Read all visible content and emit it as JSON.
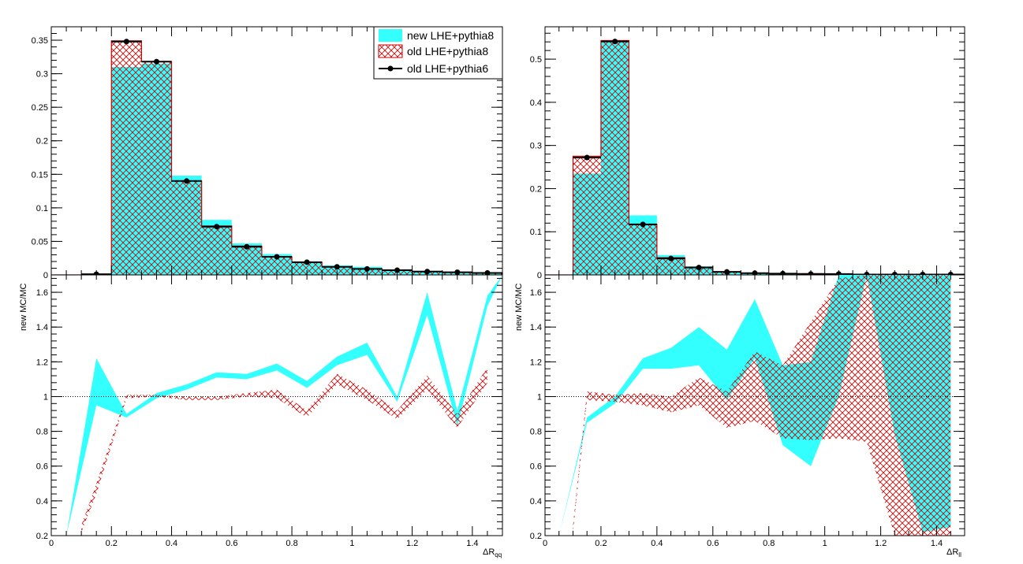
{
  "chart_data": [
    {
      "type": "histogram",
      "panel": "left-top",
      "xlim": [
        0,
        1.5
      ],
      "ylim": [
        0,
        0.37
      ],
      "yticks": [
        0,
        0.05,
        0.1,
        0.15,
        0.2,
        0.25,
        0.3,
        0.35
      ],
      "ytick_labels": [
        "0",
        "0.05",
        "0.1",
        "0.15",
        "0.2",
        "0.25",
        "0.3",
        "0.35"
      ],
      "bin_edges": [
        0,
        0.1,
        0.2,
        0.3,
        0.4,
        0.5,
        0.6,
        0.7,
        0.8,
        0.9,
        1.0,
        1.1,
        1.2,
        1.3,
        1.4,
        1.5
      ],
      "series": [
        {
          "name": "new LHE+pythia8",
          "style": "fill",
          "color": "#33ffff",
          "values": [
            0,
            0,
            0.31,
            0.315,
            0.148,
            0.082,
            0.047,
            0.031,
            0.02,
            0.014,
            0.012,
            0.008,
            0.006,
            0.004,
            0.003
          ]
        },
        {
          "name": "old LHE+pythia8",
          "style": "hatch",
          "color": "#cc0000",
          "values": [
            0,
            0,
            0.349,
            0.318,
            0.14,
            0.073,
            0.043,
            0.027,
            0.019,
            0.012,
            0.009,
            0.007,
            0.005,
            0.004,
            0.003
          ]
        },
        {
          "name": "old LHE+pythia6",
          "style": "markers",
          "color": "#000000",
          "values": [
            0,
            0.001,
            0.348,
            0.318,
            0.14,
            0.072,
            0.042,
            0.027,
            0.019,
            0.012,
            0.009,
            0.007,
            0.005,
            0.004,
            0.003
          ]
        }
      ],
      "legend": {
        "position": "top-right",
        "entries": [
          "new LHE+pythia8",
          "old LHE+pythia8",
          "old LHE+pythia6"
        ]
      }
    },
    {
      "type": "ratio-band",
      "panel": "left-bottom",
      "ylabel": "new MC/MC",
      "xlabel": "ΔR",
      "xlabel_sub": "qq",
      "xlim": [
        0,
        1.5
      ],
      "ylim": [
        0.2,
        1.7
      ],
      "xticks": [
        0,
        0.2,
        0.4,
        0.6,
        0.8,
        1,
        1.2,
        1.4
      ],
      "xtick_labels": [
        "0",
        "0.2",
        "0.4",
        "0.6",
        "0.8",
        "1",
        "1.2",
        "1.4"
      ],
      "yticks": [
        0.2,
        0.4,
        0.6,
        0.8,
        1,
        1.2,
        1.4,
        1.6
      ],
      "ytick_labels": [
        "0.2",
        "0.4",
        "0.6",
        "0.8",
        "1",
        "1.2",
        "1.4",
        "1.6"
      ],
      "reference_line": 1,
      "bands": [
        {
          "name": "new LHE+pythia8",
          "style": "fill",
          "color": "#33ffff",
          "x": [
            0.05,
            0.15,
            0.25,
            0.35,
            0.45,
            0.55,
            0.65,
            0.75,
            0.85,
            0.95,
            1.05,
            1.15,
            1.25,
            1.35,
            1.45,
            1.5
          ],
          "low": [
            0.2,
            0.95,
            0.88,
            0.99,
            1.04,
            1.11,
            1.1,
            1.15,
            1.05,
            1.18,
            1.24,
            0.97,
            1.47,
            0.83,
            1.52,
            1.7
          ],
          "high": [
            0.2,
            1.22,
            0.9,
            1.02,
            1.07,
            1.14,
            1.13,
            1.19,
            1.09,
            1.23,
            1.31,
            1.0,
            1.6,
            0.92,
            1.58,
            1.7
          ]
        },
        {
          "name": "old LHE+pythia8",
          "style": "hatch",
          "color": "#cc0000",
          "x": [
            0.1,
            0.15,
            0.25,
            0.35,
            0.45,
            0.55,
            0.65,
            0.75,
            0.85,
            0.95,
            1.05,
            1.15,
            1.25,
            1.35,
            1.45
          ],
          "low": [
            0.22,
            0.44,
            0.99,
            1.0,
            0.98,
            0.98,
            1.0,
            0.99,
            0.88,
            1.07,
            0.98,
            0.87,
            1.04,
            0.82,
            1.08
          ],
          "high": [
            0.26,
            0.5,
            1.01,
            1.01,
            1.0,
            1.0,
            1.02,
            1.04,
            0.92,
            1.13,
            1.04,
            0.92,
            1.12,
            0.9,
            1.17
          ]
        }
      ]
    },
    {
      "type": "histogram",
      "panel": "right-top",
      "xlim": [
        0,
        1.5
      ],
      "ylim": [
        0,
        0.575
      ],
      "yticks": [
        0,
        0.1,
        0.2,
        0.3,
        0.4,
        0.5
      ],
      "ytick_labels": [
        "0",
        "0.1",
        "0.2",
        "0.3",
        "0.4",
        "0.5"
      ],
      "bin_edges": [
        0,
        0.1,
        0.2,
        0.3,
        0.4,
        0.5,
        0.6,
        0.7,
        0.8,
        0.9,
        1.0,
        1.1,
        1.2,
        1.3,
        1.4,
        1.5
      ],
      "series": [
        {
          "name": "new LHE+pythia8",
          "style": "fill",
          "color": "#33ffff",
          "values": [
            0,
            0.235,
            0.54,
            0.138,
            0.046,
            0.02,
            0.008,
            0.005,
            0.004,
            0.003,
            0.002,
            0.002,
            0.001,
            0.001,
            0.001
          ]
        },
        {
          "name": "old LHE+pythia8",
          "style": "hatch",
          "color": "#cc0000",
          "values": [
            0,
            0.275,
            0.543,
            0.117,
            0.04,
            0.018,
            0.007,
            0.004,
            0.003,
            0.003,
            0.002,
            0.001,
            0.001,
            0.001,
            0.001
          ]
        },
        {
          "name": "old LHE+pythia6",
          "style": "markers",
          "color": "#000000",
          "values": [
            0,
            0.272,
            0.541,
            0.117,
            0.038,
            0.017,
            0.007,
            0.004,
            0.003,
            0.002,
            0.002,
            0.001,
            0.001,
            0.001,
            0.001
          ]
        }
      ]
    },
    {
      "type": "ratio-band",
      "panel": "right-bottom",
      "ylabel": "new MC/MC",
      "xlabel": "ΔR",
      "xlabel_sub": "ll",
      "xlim": [
        0,
        1.5
      ],
      "ylim": [
        0.2,
        1.7
      ],
      "xticks": [
        0,
        0.2,
        0.4,
        0.6,
        0.8,
        1,
        1.2,
        1.4
      ],
      "xtick_labels": [
        "0",
        "0.2",
        "0.4",
        "0.6",
        "0.8",
        "1",
        "1.2",
        "1.4"
      ],
      "yticks": [
        0.2,
        0.4,
        0.6,
        0.8,
        1,
        1.2,
        1.4,
        1.6
      ],
      "ytick_labels": [
        "0.2",
        "0.4",
        "0.6",
        "0.8",
        "1",
        "1.2",
        "1.4",
        "1.6"
      ],
      "reference_line": 1,
      "bands": [
        {
          "name": "new LHE+pythia8",
          "style": "fill",
          "color": "#33ffff",
          "x": [
            0.05,
            0.15,
            0.25,
            0.35,
            0.45,
            0.55,
            0.65,
            0.75,
            0.85,
            0.95,
            1.05,
            1.15,
            1.25,
            1.35,
            1.45
          ],
          "low": [
            0.2,
            0.85,
            0.96,
            1.16,
            1.16,
            1.18,
            0.98,
            1.22,
            0.72,
            0.6,
            1.0,
            1.7,
            0.78,
            0.22,
            0.25
          ],
          "high": [
            0.2,
            0.88,
            1.0,
            1.22,
            1.28,
            1.4,
            1.27,
            1.56,
            1.18,
            1.2,
            1.7,
            1.7,
            1.7,
            1.7,
            1.7
          ]
        },
        {
          "name": "old LHE+pythia8",
          "style": "hatch",
          "color": "#cc0000",
          "x": [
            0.1,
            0.15,
            0.25,
            0.35,
            0.45,
            0.55,
            0.65,
            0.75,
            0.85,
            0.95,
            1.05,
            1.15,
            1.25,
            1.35,
            1.45
          ],
          "low": [
            0.22,
            0.98,
            0.97,
            0.95,
            0.91,
            0.95,
            0.82,
            0.86,
            0.76,
            0.75,
            0.76,
            0.74,
            0.2,
            0.2,
            0.2
          ],
          "high": [
            0.26,
            1.03,
            1.01,
            1.02,
            1.0,
            1.11,
            1.03,
            1.26,
            1.18,
            1.43,
            1.68,
            1.7,
            1.7,
            1.7,
            1.7
          ]
        }
      ]
    }
  ]
}
